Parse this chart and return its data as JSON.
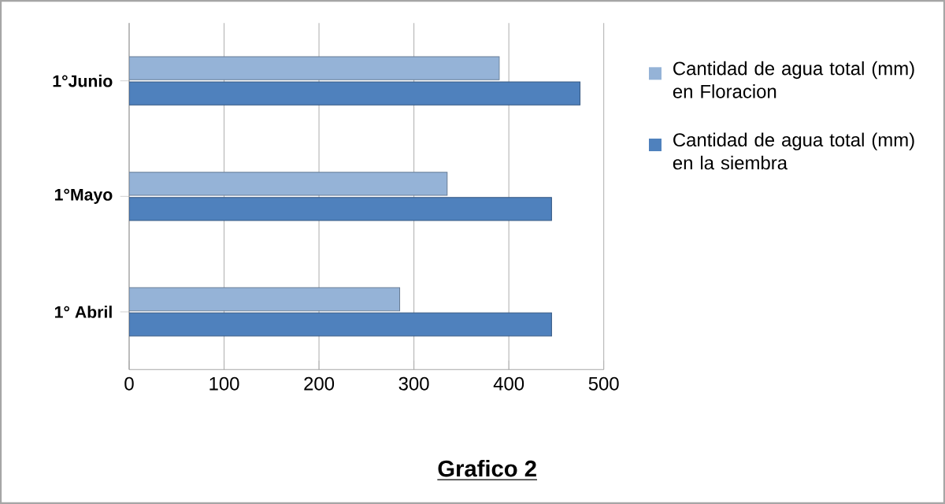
{
  "chart_data": {
    "type": "bar",
    "orientation": "horizontal",
    "title": "Grafico 2",
    "categories": [
      "1°Junio",
      "1°Mayo",
      "1° Abril"
    ],
    "series": [
      {
        "name": "Cantidad de agua total (mm) en Floracion",
        "color": "#95b3d7",
        "values": [
          390,
          335,
          285
        ]
      },
      {
        "name": "Cantidad de agua total (mm) en la siembra",
        "color": "#4f81bd",
        "values": [
          475,
          445,
          445
        ]
      }
    ],
    "xlim": [
      0,
      500
    ],
    "xticks": [
      0,
      100,
      200,
      300,
      400,
      500
    ],
    "grid": "x",
    "legend": "right"
  }
}
